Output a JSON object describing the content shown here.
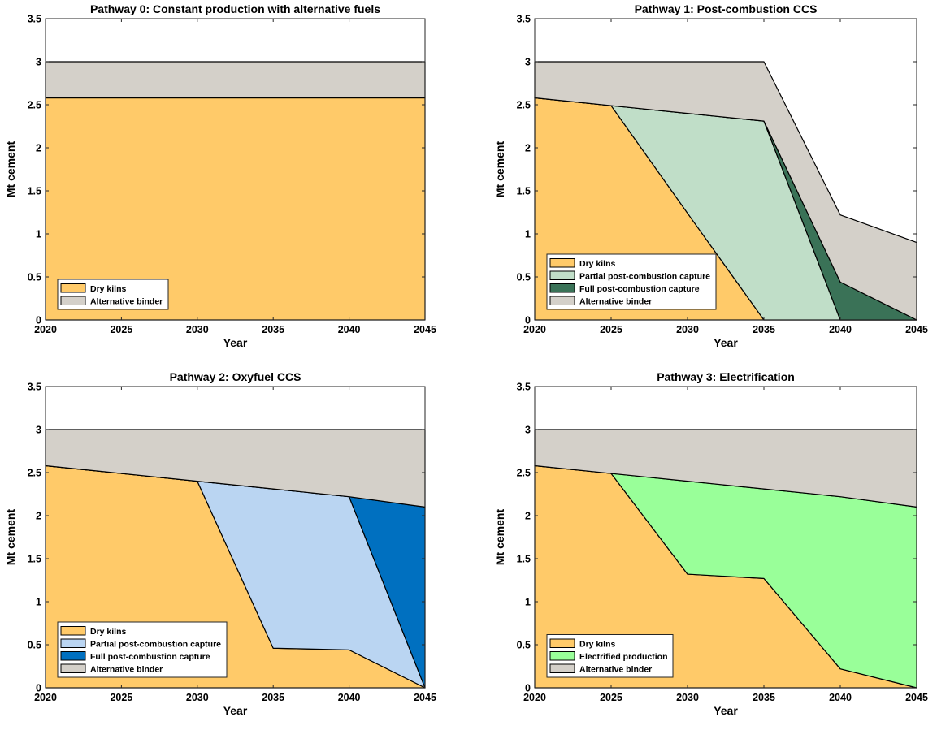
{
  "figure": {
    "background": "#ffffff"
  },
  "colors": {
    "dry_kilns": "#FFCA69",
    "partial_post_combustion": "#C0DEC8",
    "full_post_combustion": "#3A7257",
    "alternative_binder": "#D4D0C9",
    "partial_oxyfuel": "#BAD5F2",
    "full_oxyfuel": "#0070C0",
    "electrified": "#99FF99"
  },
  "chart_data": [
    {
      "type": "area",
      "stacked": true,
      "title": "Pathway 0: Constant production with alternative fuels",
      "xlabel": "Year",
      "ylabel": "Mt cement",
      "xlim": [
        2020,
        2045
      ],
      "ylim": [
        0,
        3.5
      ],
      "xticks": [
        "2020",
        "2025",
        "2030",
        "2035",
        "2040",
        "2045"
      ],
      "yticks": [
        "0",
        "0.5",
        "1",
        "1.5",
        "2",
        "2.5",
        "3",
        "3.5"
      ],
      "grid": false,
      "legend_position": "bottom-left",
      "x": [
        2020,
        2025,
        2030,
        2035,
        2040,
        2045
      ],
      "series": [
        {
          "name": "Dry kilns",
          "color": "#FFCA69",
          "values": [
            2.58,
            2.58,
            2.58,
            2.58,
            2.58,
            2.58
          ]
        },
        {
          "name": "Alternative binder",
          "color": "#D4D0C9",
          "values": [
            0.42,
            0.42,
            0.42,
            0.42,
            0.42,
            0.42
          ]
        }
      ]
    },
    {
      "type": "area",
      "stacked": true,
      "title": "Pathway 1: Post-combustion CCS",
      "xlabel": "Year",
      "ylabel": "Mt cement",
      "xlim": [
        2020,
        2045
      ],
      "ylim": [
        0,
        3.5
      ],
      "xticks": [
        "2020",
        "2025",
        "2030",
        "2035",
        "2040",
        "2045"
      ],
      "yticks": [
        "0",
        "0.5",
        "1",
        "1.5",
        "2",
        "2.5",
        "3",
        "3.5"
      ],
      "grid": false,
      "legend_position": "bottom-left",
      "x": [
        2020,
        2025,
        2030,
        2035,
        2040,
        2045
      ],
      "series": [
        {
          "name": "Dry kilns",
          "color": "#FFCA69",
          "values": [
            2.58,
            2.49,
            1.24,
            0.0,
            0.0,
            0.0
          ]
        },
        {
          "name": "Partial post-combustion capture",
          "color": "#C0DEC8",
          "values": [
            0.0,
            0.0,
            1.16,
            2.31,
            0.0,
            0.0
          ]
        },
        {
          "name": "Full post-combustion capture",
          "color": "#3A7257",
          "values": [
            0.0,
            0.0,
            0.0,
            0.0,
            0.44,
            0.0
          ]
        },
        {
          "name": "Alternative binder",
          "color": "#D4D0C9",
          "values": [
            0.42,
            0.51,
            0.6,
            0.69,
            0.78,
            0.9
          ]
        }
      ]
    },
    {
      "type": "area",
      "stacked": true,
      "title": "Pathway 2: Oxyfuel CCS",
      "xlabel": "Year",
      "ylabel": "Mt cement",
      "xlim": [
        2020,
        2045
      ],
      "ylim": [
        0,
        3.5
      ],
      "xticks": [
        "2020",
        "2025",
        "2030",
        "2035",
        "2040",
        "2045"
      ],
      "yticks": [
        "0",
        "0.5",
        "1",
        "1.5",
        "2",
        "2.5",
        "3",
        "3.5"
      ],
      "grid": false,
      "legend_position": "bottom-left",
      "x": [
        2020,
        2025,
        2030,
        2035,
        2040,
        2045
      ],
      "series": [
        {
          "name": "Dry kilns",
          "color": "#FFCA69",
          "values": [
            2.58,
            2.49,
            2.4,
            0.46,
            0.44,
            0.0
          ]
        },
        {
          "name": "Partial post-combustion capture",
          "color": "#BAD5F2",
          "values": [
            0.0,
            0.0,
            0.0,
            1.85,
            1.78,
            0.0
          ]
        },
        {
          "name": "Full post-combustion capture",
          "color": "#0070C0",
          "values": [
            0.0,
            0.0,
            0.0,
            0.0,
            0.0,
            2.1
          ]
        },
        {
          "name": "Alternative binder",
          "color": "#D4D0C9",
          "values": [
            0.42,
            0.51,
            0.6,
            0.69,
            0.78,
            0.9
          ]
        }
      ]
    },
    {
      "type": "area",
      "stacked": true,
      "title": "Pathway 3: Electrification",
      "xlabel": "Year",
      "ylabel": "Mt cement",
      "xlim": [
        2020,
        2045
      ],
      "ylim": [
        0,
        3.5
      ],
      "xticks": [
        "2020",
        "2025",
        "2030",
        "2035",
        "2040",
        "2045"
      ],
      "yticks": [
        "0",
        "0.5",
        "1",
        "1.5",
        "2",
        "2.5",
        "3",
        "3.5"
      ],
      "grid": false,
      "legend_position": "bottom-left",
      "x": [
        2020,
        2025,
        2030,
        2035,
        2040,
        2045
      ],
      "series": [
        {
          "name": "Dry kilns",
          "color": "#FFCA69",
          "values": [
            2.58,
            2.49,
            1.32,
            1.27,
            0.22,
            0.0
          ]
        },
        {
          "name": "Electrified production",
          "color": "#99FF99",
          "values": [
            0.0,
            0.0,
            1.08,
            1.04,
            2.0,
            2.1
          ]
        },
        {
          "name": "Alternative binder",
          "color": "#D4D0C9",
          "values": [
            0.42,
            0.51,
            0.6,
            0.69,
            0.78,
            0.9
          ]
        }
      ]
    }
  ]
}
